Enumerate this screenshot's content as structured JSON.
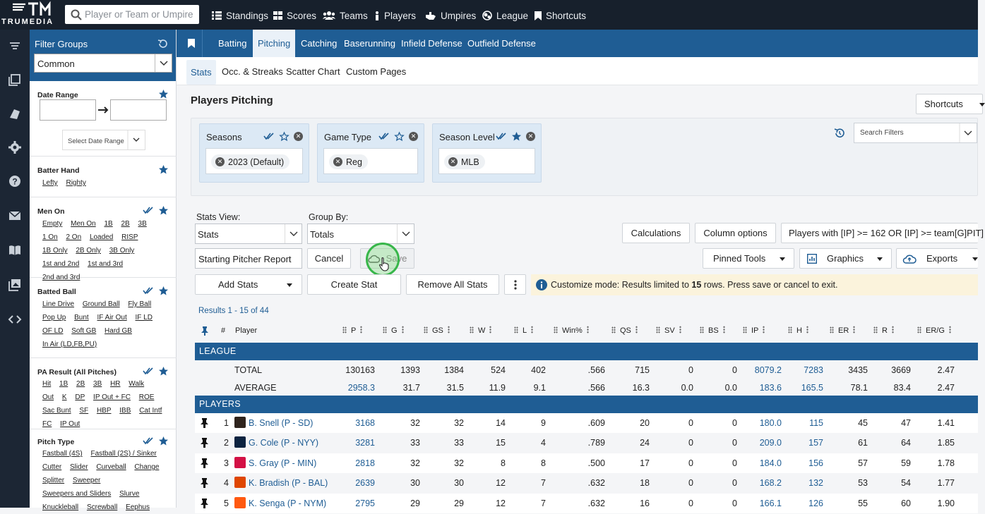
{
  "app": {
    "brand": "TRUMEDIA"
  },
  "search": {
    "placeholder": "Player or Team or Umpire"
  },
  "topnav": [
    {
      "label": "Standings",
      "icon": "list-icon"
    },
    {
      "label": "Scores",
      "icon": "grid-icon"
    },
    {
      "label": "Teams",
      "icon": "people-icon"
    },
    {
      "label": "Players",
      "icon": "person-icon"
    },
    {
      "label": "Umpires",
      "icon": "thumbs-icon"
    },
    {
      "label": "League",
      "icon": "globe-icon"
    },
    {
      "label": "Shortcuts",
      "icon": "bookmark-icon"
    }
  ],
  "filters": {
    "title": "Filter Groups",
    "group_select": "Common",
    "date_range": {
      "title": "Date Range",
      "select_label": "Select Date Range"
    },
    "batter_hand": {
      "title": "Batter Hand",
      "options": [
        "Lefty",
        "Righty"
      ]
    },
    "men_on": {
      "title": "Men On",
      "options": [
        "Empty",
        "Men On",
        "1B",
        "2B",
        "3B",
        "1 On",
        "2 On",
        "Loaded",
        "RISP",
        "1B Only",
        "2B Only",
        "3B Only",
        "1st and 2nd",
        "1st and 3rd",
        "2nd and 3rd"
      ]
    },
    "batted_ball": {
      "title": "Batted Ball",
      "options": [
        "Line Drive",
        "Ground Ball",
        "Fly Ball",
        "Pop Up",
        "Bunt",
        "IF Air Out",
        "IF LD",
        "OF LD",
        "Soft GB",
        "Hard GB",
        "In Air (LD,FB,PU)"
      ]
    },
    "pa_result": {
      "title": "PA Result (All Pitches)",
      "options": [
        "Hit",
        "1B",
        "2B",
        "3B",
        "HR",
        "Walk",
        "Out",
        "K",
        "DP",
        "IP Out + FC",
        "ROE",
        "Sac Bunt",
        "SF",
        "HBP",
        "IBB",
        "Cat Intf",
        "FC",
        "IP Out"
      ]
    },
    "pitch_type": {
      "title": "Pitch Type",
      "options": [
        "Fastball (4S)",
        "Fastball (2S) / Sinker",
        "Cutter",
        "Slider",
        "Curveball",
        "Change",
        "Splitter",
        "Sweeper",
        "Sweepers and Sliders",
        "Slurve",
        "Knuckleball",
        "Screwball",
        "Eephus"
      ]
    }
  },
  "tabs": {
    "primary": [
      "Batting",
      "Pitching",
      "Catching",
      "Baserunning",
      "Infield Defense",
      "Outfield Defense"
    ],
    "primary_active": "Pitching",
    "secondary": [
      "Stats",
      "Occ. & Streaks",
      "Scatter Chart",
      "Custom Pages"
    ],
    "secondary_active": "Stats"
  },
  "page": {
    "title": "Players Pitching",
    "shortcuts_label": "Shortcuts",
    "search_filters_placeholder": "Search Filters"
  },
  "active_filters": [
    {
      "label": "Seasons",
      "value": "2023 (Default)"
    },
    {
      "label": "Game Type",
      "value": "Reg"
    },
    {
      "label": "Season Level",
      "value": "MLB"
    }
  ],
  "controls": {
    "stats_view_label": "Stats View:",
    "stats_view_value": "Stats",
    "group_by_label": "Group By:",
    "group_by_value": "Totals",
    "calculations": "Calculations",
    "column_options": "Column options",
    "players_filter": "Players with [IP] >= 162 OR [IP] >= team[G]PIT]",
    "report_name": "Starting Pitcher Report",
    "cancel": "Cancel",
    "save": "Save",
    "pinned_tools": "Pinned Tools",
    "graphics": "Graphics",
    "exports": "Exports",
    "add_stats": "Add Stats",
    "create_stat": "Create Stat",
    "remove_all_stats": "Remove All Stats",
    "notice_prefix": "Customize mode: Results limited to ",
    "notice_count": "15",
    "notice_suffix": " rows. Press save or cancel to exit.",
    "results": "Results 1 - 15 of 44"
  },
  "table": {
    "headers": [
      "#",
      "Player",
      "P",
      "G",
      "GS",
      "W",
      "L",
      "Win%",
      "QS",
      "SV",
      "BS",
      "IP",
      "H",
      "ER",
      "R",
      "ER/G"
    ],
    "league_label": "LEAGUE",
    "players_label": "PLAYERS",
    "total": {
      "label": "TOTAL",
      "values": [
        "130163",
        "1393",
        "1384",
        "524",
        "402",
        ".566",
        "715",
        "0",
        "0",
        "8079.2",
        "7283",
        "3435",
        "3669",
        "2.47"
      ]
    },
    "average": {
      "label": "AVERAGE",
      "values": [
        "2958.3",
        "31.7",
        "31.5",
        "11.9",
        "9.1",
        ".566",
        "16.3",
        "0.0",
        "0.0",
        "183.6",
        "165.5",
        "78.1",
        "83.4",
        "2.47"
      ]
    },
    "rows": [
      {
        "num": "1",
        "player": "B. Snell (P - SD)",
        "team_color": "#2f241d",
        "values": [
          "3168",
          "32",
          "32",
          "14",
          "9",
          ".609",
          "20",
          "0",
          "0",
          "180.0",
          "115",
          "45",
          "47",
          "1.41"
        ]
      },
      {
        "num": "2",
        "player": "G. Cole (P - NYY)",
        "team_color": "#0c2340",
        "values": [
          "3281",
          "33",
          "33",
          "15",
          "4",
          ".789",
          "24",
          "0",
          "0",
          "209.0",
          "157",
          "61",
          "64",
          "1.85"
        ]
      },
      {
        "num": "3",
        "player": "S. Gray (P - MIN)",
        "team_color": "#d31145",
        "values": [
          "2818",
          "32",
          "32",
          "8",
          "8",
          ".500",
          "17",
          "0",
          "0",
          "184.0",
          "156",
          "57",
          "59",
          "1.78"
        ]
      },
      {
        "num": "4",
        "player": "K. Bradish (P - BAL)",
        "team_color": "#df4601",
        "values": [
          "2639",
          "30",
          "30",
          "12",
          "7",
          ".632",
          "18",
          "0",
          "0",
          "168.2",
          "132",
          "53",
          "54",
          "1.77"
        ]
      },
      {
        "num": "5",
        "player": "K. Senga (P - NYM)",
        "team_color": "#ff5910",
        "values": [
          "2795",
          "29",
          "29",
          "12",
          "7",
          ".632",
          "16",
          "0",
          "0",
          "166.1",
          "126",
          "55",
          "60",
          "1.90"
        ]
      }
    ]
  },
  "colors": {
    "brand_blue": "#1f5d94",
    "topbar": "#17202c",
    "link": "#1f5d94"
  }
}
